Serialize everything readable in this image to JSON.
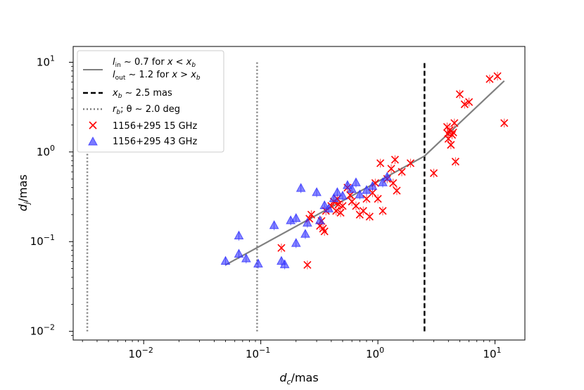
{
  "chart_data": {
    "type": "scatter",
    "xscale": "log",
    "yscale": "log",
    "xlim": [
      0.0025,
      18
    ],
    "ylim": [
      0.008,
      15
    ],
    "xlabel": {
      "main": "d",
      "sub": "c",
      "unit": "/mas"
    },
    "ylabel": {
      "main": "d",
      "sub": "j",
      "unit": "/mas"
    },
    "xticks": [
      {
        "value": 0.01,
        "base": "10",
        "exp": "−2"
      },
      {
        "value": 0.1,
        "base": "10",
        "exp": "−1"
      },
      {
        "value": 1,
        "base": "10",
        "exp": "0"
      },
      {
        "value": 10,
        "base": "10",
        "exp": "1"
      }
    ],
    "yticks": [
      {
        "value": 0.01,
        "base": "10",
        "exp": "−2"
      },
      {
        "value": 0.1,
        "base": "10",
        "exp": "−1"
      },
      {
        "value": 1,
        "base": "10",
        "exp": "0"
      },
      {
        "value": 10,
        "base": "10",
        "exp": "1"
      }
    ],
    "legend_position": "upper-left",
    "fit_line": {
      "color": "#808080",
      "x": [
        0.05,
        2.5,
        12
      ],
      "y": [
        0.055,
        0.9,
        6.2
      ]
    },
    "vlines": [
      {
        "x": 2.5,
        "style": "dashed",
        "color": "#000000",
        "y_from": 0.01,
        "y_to": 10
      },
      {
        "x": 0.093,
        "style": "dotted",
        "color": "#808080",
        "y_from": 0.01,
        "y_to": 10
      },
      {
        "x": 0.0033,
        "style": "dotted",
        "color": "#808080",
        "y_from": 0.01,
        "y_to": 1
      }
    ],
    "series": [
      {
        "name": "1156+295 15 GHz",
        "marker": "x",
        "color": "#ff0000",
        "points": [
          [
            0.15,
            0.085
          ],
          [
            0.25,
            0.055
          ],
          [
            0.26,
            0.18
          ],
          [
            0.27,
            0.2
          ],
          [
            0.32,
            0.15
          ],
          [
            0.33,
            0.17
          ],
          [
            0.34,
            0.14
          ],
          [
            0.35,
            0.13
          ],
          [
            0.36,
            0.22
          ],
          [
            0.4,
            0.25
          ],
          [
            0.42,
            0.28
          ],
          [
            0.44,
            0.22
          ],
          [
            0.45,
            0.3
          ],
          [
            0.46,
            0.26
          ],
          [
            0.48,
            0.21
          ],
          [
            0.5,
            0.25
          ],
          [
            0.55,
            0.4
          ],
          [
            0.58,
            0.33
          ],
          [
            0.6,
            0.28
          ],
          [
            0.65,
            0.25
          ],
          [
            0.7,
            0.2
          ],
          [
            0.75,
            0.22
          ],
          [
            0.8,
            0.3
          ],
          [
            0.85,
            0.19
          ],
          [
            0.9,
            0.35
          ],
          [
            0.95,
            0.45
          ],
          [
            1.0,
            0.3
          ],
          [
            1.05,
            0.75
          ],
          [
            1.1,
            0.22
          ],
          [
            1.2,
            0.5
          ],
          [
            1.3,
            0.65
          ],
          [
            1.35,
            0.45
          ],
          [
            1.4,
            0.82
          ],
          [
            1.45,
            0.37
          ],
          [
            1.6,
            0.6
          ],
          [
            1.9,
            0.75
          ],
          [
            3.0,
            0.58
          ],
          [
            3.9,
            1.9
          ],
          [
            3.95,
            1.6
          ],
          [
            4.0,
            1.4
          ],
          [
            4.1,
            1.75
          ],
          [
            4.2,
            1.2
          ],
          [
            4.3,
            1.55
          ],
          [
            4.4,
            1.65
          ],
          [
            4.5,
            2.1
          ],
          [
            4.6,
            0.78
          ],
          [
            5.0,
            4.4
          ],
          [
            5.5,
            3.4
          ],
          [
            6.0,
            3.6
          ],
          [
            9.0,
            6.5
          ],
          [
            10.5,
            7.0
          ],
          [
            12.0,
            2.1
          ]
        ]
      },
      {
        "name": "1156+295 43 GHz",
        "marker": "triangle",
        "color": "#3333ff",
        "points": [
          [
            0.05,
            0.06
          ],
          [
            0.065,
            0.115
          ],
          [
            0.065,
            0.072
          ],
          [
            0.075,
            0.064
          ],
          [
            0.095,
            0.056
          ],
          [
            0.13,
            0.15
          ],
          [
            0.15,
            0.06
          ],
          [
            0.16,
            0.055
          ],
          [
            0.18,
            0.17
          ],
          [
            0.2,
            0.18
          ],
          [
            0.2,
            0.095
          ],
          [
            0.22,
            0.39
          ],
          [
            0.24,
            0.12
          ],
          [
            0.25,
            0.16
          ],
          [
            0.3,
            0.35
          ],
          [
            0.32,
            0.17
          ],
          [
            0.35,
            0.25
          ],
          [
            0.38,
            0.23
          ],
          [
            0.42,
            0.3
          ],
          [
            0.45,
            0.35
          ],
          [
            0.5,
            0.32
          ],
          [
            0.55,
            0.42
          ],
          [
            0.6,
            0.38
          ],
          [
            0.65,
            0.45
          ],
          [
            0.7,
            0.33
          ],
          [
            0.8,
            0.37
          ],
          [
            0.9,
            0.41
          ],
          [
            1.1,
            0.45
          ],
          [
            1.2,
            0.52
          ]
        ]
      }
    ],
    "legend": {
      "line_label": {
        "l1_main": "l",
        "l1_sub": "in",
        "l1_rest": " ∼ 0.7 for ",
        "l1_cond": "x < x",
        "l1_cond_sub": "b",
        "l2_main": "l",
        "l2_sub": "out",
        "l2_rest": " ∼ 1.2 for ",
        "l2_cond": "x > x",
        "l2_cond_sub": "b"
      },
      "dashed_label": {
        "main": "x",
        "sub": "b",
        "rest": " ∼ 2.5 mas"
      },
      "dotted_label": {
        "main": "r",
        "sub": "b",
        "rest": ";  θ ∼ 2.0 deg"
      }
    }
  }
}
